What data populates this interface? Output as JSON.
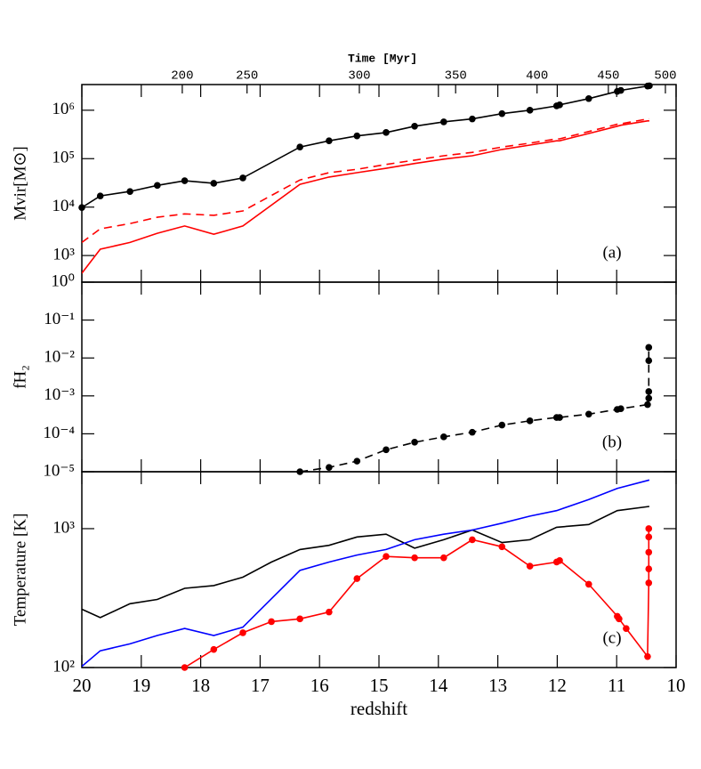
{
  "chart_data": [
    {
      "type": "line",
      "y_label": "Mvir[M⊙]",
      "annotation": "(a)",
      "log": true,
      "ylim": [
        282,
        3390000
      ],
      "yticks": [
        {
          "value": 1000,
          "label": "10³"
        },
        {
          "value": 10000,
          "label": "10⁴"
        },
        {
          "value": 100000,
          "label": "10⁵"
        },
        {
          "value": 1000000,
          "label": "10⁶"
        }
      ],
      "x2label": "Time [Myr]",
      "x2ticks": [
        200,
        250,
        300,
        350,
        400,
        450,
        500
      ],
      "x2ticks_z": [
        18.31,
        17.22,
        15.33,
        13.71,
        12.34,
        11.14,
        10.18
      ],
      "series": [
        {
          "color": "#000000",
          "markers": true,
          "dash": false,
          "x": [
            20,
            19.69,
            19.19,
            18.73,
            18.27,
            17.78,
            17.29,
            16.33,
            15.84,
            15.37,
            14.88,
            14.4,
            13.91,
            13.43,
            12.93,
            12.46,
            12.01,
            11.96,
            11.47,
            10.99,
            10.93,
            10.48,
            10.45
          ],
          "values": [
            9800,
            17000,
            21000,
            28000,
            35000,
            31000,
            40000,
            174000,
            234000,
            295000,
            347000,
            468000,
            575000,
            661000,
            851000,
            1000000,
            1230000,
            1290000,
            1740000,
            2450000,
            2570000,
            3160000,
            3200000
          ]
        },
        {
          "color": "#ff0000",
          "markers": false,
          "dash": false,
          "x": [
            20,
            19.69,
            19.19,
            18.73,
            18.27,
            17.78,
            17.29,
            16.33,
            15.84,
            15.37,
            14.88,
            14.4,
            13.91,
            13.43,
            12.93,
            12.46,
            12.01,
            11.96,
            11.47,
            10.99,
            10.93,
            10.48,
            10.45
          ],
          "values": [
            430,
            1350,
            1860,
            2880,
            4070,
            2750,
            4070,
            29500,
            41700,
            51300,
            63100,
            79400,
            97700,
            115000,
            155000,
            191000,
            234000,
            234000,
            331000,
            468000,
            490000,
            603000,
            603000
          ]
        },
        {
          "color": "#ff0000",
          "markers": false,
          "dash": true,
          "x": [
            20,
            19.69,
            19.19,
            18.73,
            18.27,
            17.78,
            17.29,
            16.33,
            15.84,
            15.37,
            14.88,
            14.4,
            13.91,
            13.43,
            12.93,
            12.46,
            12.01,
            11.96,
            11.47,
            10.99,
            10.93,
            10.48,
            10.45
          ],
          "values": [
            1860,
            3550,
            4570,
            6170,
            7240,
            6760,
            8320,
            36300,
            51300,
            60300,
            75900,
            93300,
            115000,
            135000,
            174000,
            209000,
            257000,
            257000,
            363000,
            513000,
            525000,
            661000,
            661000
          ]
        }
      ]
    },
    {
      "type": "line",
      "y_label": "fH₂",
      "annotation": "(b)",
      "log": true,
      "ylim": [
        1e-05,
        1
      ],
      "yticks": [
        {
          "value": 1e-05,
          "label": "10⁻⁵"
        },
        {
          "value": 0.0001,
          "label": "10⁻⁴"
        },
        {
          "value": 0.001,
          "label": "10⁻³"
        },
        {
          "value": 0.01,
          "label": "10⁻²"
        },
        {
          "value": 0.1,
          "label": "10⁻¹"
        },
        {
          "value": 1,
          "label": "10⁰"
        }
      ],
      "series": [
        {
          "color": "#000000",
          "markers": true,
          "dash": true,
          "x": [
            16.33,
            15.84,
            15.37,
            14.88,
            14.4,
            13.91,
            13.43,
            12.93,
            12.46,
            12.01,
            11.96,
            11.47,
            10.99,
            10.93,
            10.48,
            10.46,
            10.46,
            10.46,
            10.46
          ],
          "values": [
            1e-05,
            1.3e-05,
            1.9e-05,
            3.8e-05,
            6e-05,
            8.3e-05,
            0.00011,
            0.00017,
            0.00022,
            0.00027,
            0.00027,
            0.00033,
            0.00044,
            0.00046,
            0.00059,
            0.00087,
            0.0013,
            0.0085,
            0.019
          ]
        }
      ]
    },
    {
      "type": "line",
      "y_label": "Temperature [K]",
      "annotation": "(c)",
      "log": true,
      "ylim": [
        100,
        2570
      ],
      "yticks": [
        {
          "value": 100,
          "label": "10²"
        },
        {
          "value": 1000,
          "label": "10³"
        }
      ],
      "x_label": "redshift",
      "xlim": [
        20,
        10
      ],
      "xticks": [
        20,
        19,
        18,
        17,
        16,
        15,
        14,
        13,
        12,
        11,
        10
      ],
      "series": [
        {
          "color": "#000000",
          "markers": false,
          "dash": false,
          "x": [
            20,
            19.69,
            19.19,
            18.73,
            18.27,
            17.78,
            17.29,
            16.81,
            16.33,
            15.84,
            15.37,
            14.88,
            14.4,
            13.91,
            13.43,
            12.93,
            12.46,
            12.01,
            11.47,
            10.99,
            10.45
          ],
          "values": [
            263,
            229,
            288,
            309,
            372,
            389,
            447,
            575,
            708,
            759,
            871,
            912,
            724,
            832,
            977,
            794,
            832,
            1023,
            1072,
            1349,
            1445
          ]
        },
        {
          "color": "#0000ff",
          "markers": false,
          "dash": false,
          "x": [
            20,
            19.69,
            19.19,
            18.73,
            18.27,
            17.78,
            17.29,
            16.33,
            15.84,
            15.37,
            14.88,
            14.4,
            13.91,
            13.43,
            12.93,
            12.46,
            12.01,
            11.47,
            10.99,
            10.45
          ],
          "values": [
            102,
            132,
            148,
            170,
            191,
            170,
            195,
            501,
            575,
            646,
            708,
            832,
            912,
            977,
            1096,
            1230,
            1349,
            1622,
            1950,
            2239
          ]
        },
        {
          "color": "#ff0000",
          "markers": true,
          "dash": false,
          "x": [
            18.27,
            17.78,
            17.29,
            16.81,
            16.33,
            15.84,
            15.37,
            14.88,
            14.4,
            13.91,
            13.43,
            12.93,
            12.46,
            12.01,
            11.96,
            11.47,
            10.99,
            10.96,
            10.84,
            10.48,
            10.46,
            10.46,
            10.46,
            10.46,
            10.46
          ],
          "values": [
            100,
            135,
            178,
            214,
            224,
            251,
            437,
            631,
            617,
            617,
            832,
            741,
            537,
            575,
            589,
            398,
            234,
            224,
            191,
            120,
            407,
            513,
            676,
            871,
            1000
          ]
        }
      ]
    }
  ]
}
